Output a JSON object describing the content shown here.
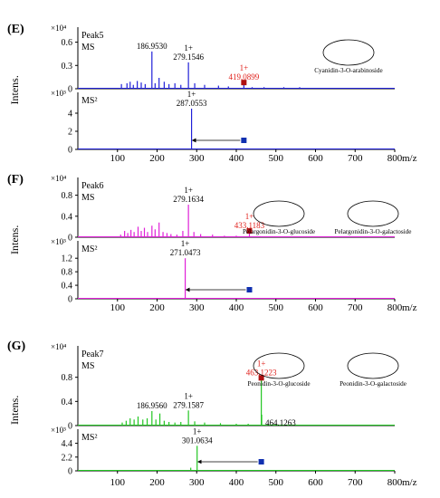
{
  "figure": {
    "x_unit": "m/z",
    "y_label": "Intens.",
    "x_ticks": [
      "100",
      "200",
      "300",
      "400",
      "500",
      "600",
      "700",
      "800"
    ]
  },
  "chart_data": [
    {
      "id": "E",
      "panel_label": "(E)",
      "type": "bar",
      "color": "#2020d8",
      "compound_names": [
        "Cyanidin-3-O-arabinoside"
      ],
      "sub": [
        {
          "tag": "Peak5",
          "sub_tag": "MS",
          "scale": "×10⁴",
          "yticks": [
            "0",
            "0.3",
            "0.6"
          ],
          "ylim": [
            0,
            0.7
          ],
          "peaks": [
            [
              110,
              0.06
            ],
            [
              124,
              0.07
            ],
            [
              132,
              0.09
            ],
            [
              140,
              0.05
            ],
            [
              150,
              0.1
            ],
            [
              160,
              0.08
            ],
            [
              170,
              0.06
            ],
            [
              186.953,
              0.48
            ],
            [
              195,
              0.07
            ],
            [
              205,
              0.14
            ],
            [
              218,
              0.09
            ],
            [
              230,
              0.06
            ],
            [
              245,
              0.07
            ],
            [
              260,
              0.05
            ],
            [
              279.1546,
              0.34
            ],
            [
              295,
              0.07
            ],
            [
              320,
              0.05
            ],
            [
              355,
              0.04
            ],
            [
              380,
              0.03
            ],
            [
              419.0899,
              0.08
            ],
            [
              440,
              0.02
            ],
            [
              470,
              0.02
            ],
            [
              520,
              0.02
            ],
            [
              560,
              0.02
            ],
            [
              600,
              0.01
            ],
            [
              650,
              0.01
            ]
          ],
          "labels": [
            {
              "mz": 186.953,
              "y": 0.48,
              "lines": [
                "186.9530"
              ]
            },
            {
              "mz": 279.1546,
              "y": 0.34,
              "lines": [
                "1+",
                "279.1546"
              ]
            },
            {
              "mz": 419.0899,
              "y": 0.08,
              "lines": [
                "1+",
                "419.0899"
              ],
              "red": true
            }
          ],
          "precursor": 419.0899
        },
        {
          "tag": "MS²",
          "scale": "×10³",
          "yticks": [
            "0",
            "2",
            "4"
          ],
          "ylim": [
            0,
            5.5
          ],
          "peaks": [
            [
              287.0553,
              4.5
            ]
          ],
          "labels": [
            {
              "mz": 287.0553,
              "y": 4.5,
              "lines": [
                "1+",
                "287.0553"
              ]
            }
          ],
          "arrow": [
            287.0553,
            419.0899
          ]
        }
      ]
    },
    {
      "id": "F",
      "panel_label": "(F)",
      "type": "bar",
      "color": "#e020d8",
      "compound_names": [
        "Pelargonidin-3-O-glucoside",
        "Pelargonidin-3-O-galactoside"
      ],
      "sub": [
        {
          "tag": "Peak6",
          "sub_tag": "MS",
          "scale": "×10⁴",
          "yticks": [
            "0",
            "0.4",
            "0.8"
          ],
          "ylim": [
            0,
            1.0
          ],
          "peaks": [
            [
              108,
              0.05
            ],
            [
              118,
              0.12
            ],
            [
              126,
              0.08
            ],
            [
              134,
              0.14
            ],
            [
              142,
              0.1
            ],
            [
              152,
              0.2
            ],
            [
              160,
              0.12
            ],
            [
              168,
              0.18
            ],
            [
              176,
              0.1
            ],
            [
              187,
              0.22
            ],
            [
              195,
              0.15
            ],
            [
              205,
              0.28
            ],
            [
              215,
              0.1
            ],
            [
              225,
              0.08
            ],
            [
              235,
              0.06
            ],
            [
              250,
              0.05
            ],
            [
              265,
              0.12
            ],
            [
              279.1634,
              0.62
            ],
            [
              293,
              0.1
            ],
            [
              310,
              0.06
            ],
            [
              340,
              0.05
            ],
            [
              370,
              0.03
            ],
            [
              400,
              0.03
            ],
            [
              433.1183,
              0.12
            ],
            [
              460,
              0.02
            ],
            [
              500,
              0.01
            ],
            [
              560,
              0.01
            ]
          ],
          "labels": [
            {
              "mz": 279.1634,
              "y": 0.62,
              "lines": [
                "1+",
                "279.1634"
              ]
            },
            {
              "mz": 433.1183,
              "y": 0.12,
              "lines": [
                "1+",
                "433.1183"
              ],
              "red": true
            }
          ],
          "precursor": 433.1183
        },
        {
          "tag": "MS²",
          "scale": "×10³",
          "yticks": [
            "0",
            "0.4",
            "0.8",
            "1.2"
          ],
          "ylim": [
            0,
            1.5
          ],
          "peaks": [
            [
              271.0473,
              1.2
            ]
          ],
          "labels": [
            {
              "mz": 271.0473,
              "y": 1.2,
              "lines": [
                "1+",
                "271.0473"
              ]
            }
          ],
          "arrow": [
            271.0473,
            433.1183
          ]
        }
      ]
    },
    {
      "id": "G",
      "panel_label": "(G)",
      "type": "bar",
      "color": "#22c622",
      "compound_names": [
        "Peonidin-3-O-glucoside",
        "Peonidin-3-O-galactoside"
      ],
      "sub": [
        {
          "tag": "Peak7",
          "sub_tag": "MS",
          "scale": "×10⁴",
          "yticks": [
            "0",
            "0.4",
            "0.8"
          ],
          "ylim": [
            0,
            1.2
          ],
          "peaks": [
            [
              112,
              0.05
            ],
            [
              122,
              0.08
            ],
            [
              132,
              0.12
            ],
            [
              142,
              0.1
            ],
            [
              152,
              0.15
            ],
            [
              164,
              0.1
            ],
            [
              175,
              0.12
            ],
            [
              186.956,
              0.24
            ],
            [
              197,
              0.1
            ],
            [
              207,
              0.2
            ],
            [
              218,
              0.08
            ],
            [
              230,
              0.06
            ],
            [
              245,
              0.05
            ],
            [
              260,
              0.06
            ],
            [
              279.1587,
              0.25
            ],
            [
              295,
              0.07
            ],
            [
              320,
              0.05
            ],
            [
              360,
              0.04
            ],
            [
              400,
              0.03
            ],
            [
              430,
              0.03
            ],
            [
              463.1223,
              0.79
            ],
            [
              464.1263,
              0.18
            ],
            [
              490,
              0.02
            ],
            [
              530,
              0.01
            ]
          ],
          "labels": [
            {
              "mz": 186.956,
              "y": 0.24,
              "lines": [
                "186.9560"
              ]
            },
            {
              "mz": 279.1587,
              "y": 0.25,
              "lines": [
                "1+",
                "279.1587"
              ]
            },
            {
              "mz": 463.1223,
              "y": 0.79,
              "lines": [
                "1+",
                "463.1223"
              ],
              "red": true
            },
            {
              "mz": 464.1263,
              "y": 0.18,
              "lines": [
                "464.1263"
              ],
              "side": true
            }
          ],
          "precursor": 463.1223
        },
        {
          "tag": "MS²",
          "scale": "×10³",
          "yticks": [
            "0",
            "2.2",
            "4.4"
          ],
          "ylim": [
            0,
            5.5
          ],
          "peaks": [
            [
              301.0634,
              4.0
            ],
            [
              285,
              0.5
            ]
          ],
          "labels": [
            {
              "mz": 301.0634,
              "y": 4.0,
              "lines": [
                "1+",
                "301.0634"
              ]
            }
          ],
          "arrow": [
            301.0634,
            463.1223
          ]
        }
      ]
    }
  ]
}
